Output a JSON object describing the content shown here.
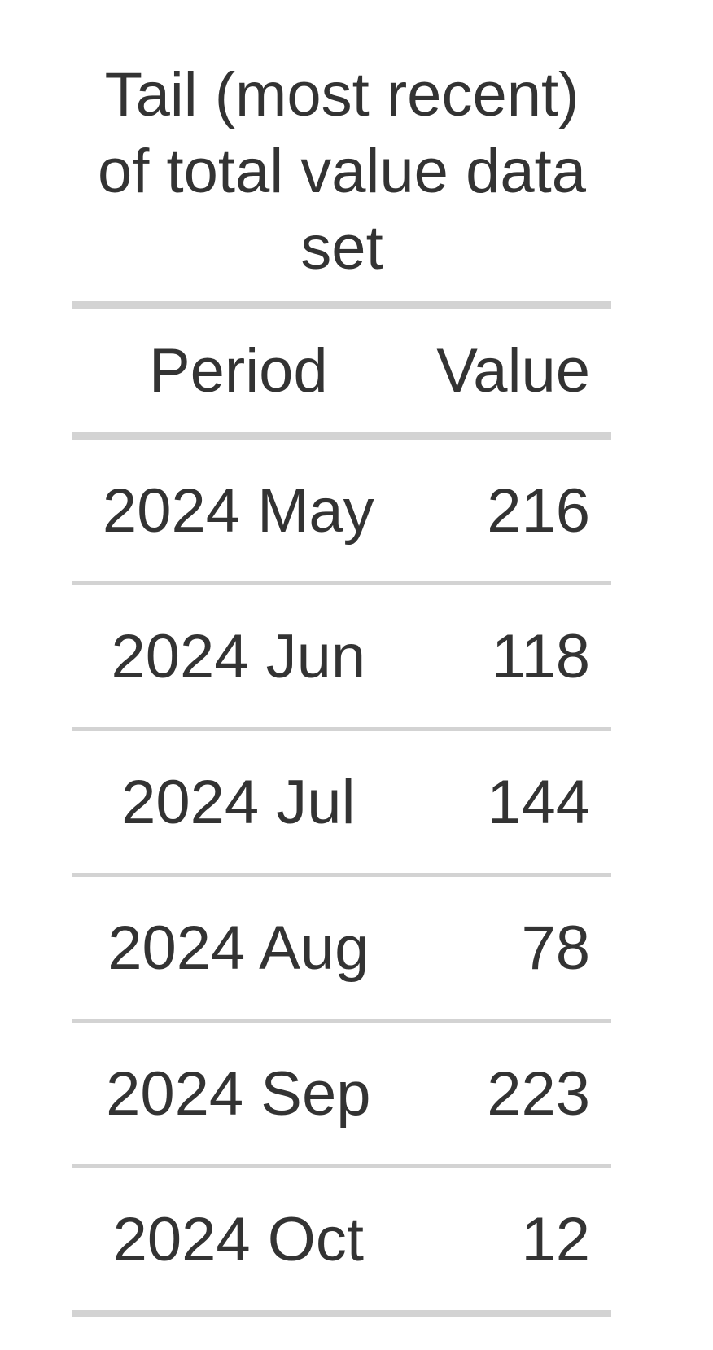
{
  "table": {
    "caption": "Tail (most recent) of total value data set",
    "columns": [
      "Period",
      "Value"
    ],
    "rows": [
      {
        "period": "2024 May",
        "value": "216"
      },
      {
        "period": "2024 Jun",
        "value": "118"
      },
      {
        "period": "2024 Jul",
        "value": "144"
      },
      {
        "period": "2024 Aug",
        "value": "78"
      },
      {
        "period": "2024 Sep",
        "value": "223"
      },
      {
        "period": "2024 Oct",
        "value": "12"
      }
    ]
  },
  "colors": {
    "text": "#333333",
    "rule": "#d3d3d3",
    "background": "#ffffff"
  }
}
